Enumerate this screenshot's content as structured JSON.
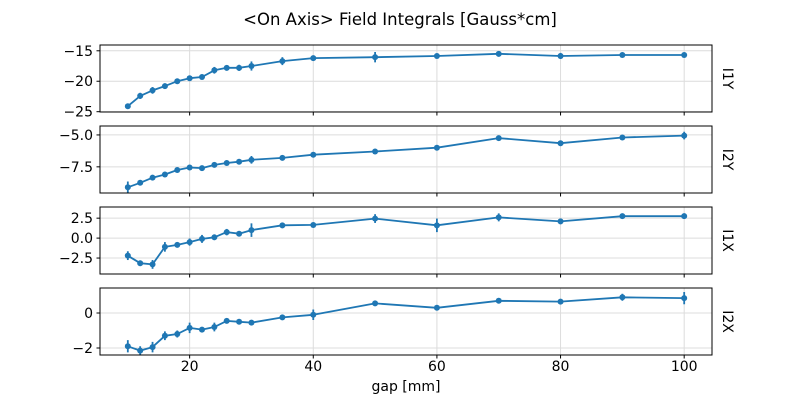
{
  "chart_data": {
    "type": "line",
    "title": "<On Axis> Field Integrals [Gauss*cm]",
    "xlabel": "gap [mm]",
    "grid": true,
    "legend": "none",
    "line_color": "#1f77b4",
    "grid_color": "#dcdcdc",
    "spine_color": "#000000",
    "text_color": "#000000",
    "x": [
      10,
      12,
      14,
      16,
      18,
      20,
      22,
      24,
      26,
      28,
      30,
      35,
      40,
      50,
      60,
      70,
      80,
      90,
      100
    ],
    "xlim": [
      5.5,
      104.5
    ],
    "xticks": [
      {
        "v": 20,
        "label": "20"
      },
      {
        "v": 40,
        "label": "40"
      },
      {
        "v": 60,
        "label": "60"
      },
      {
        "v": 80,
        "label": "80"
      },
      {
        "v": 100,
        "label": "100"
      }
    ],
    "subplots": [
      {
        "name": "I1Y",
        "ylim": [
          -25.05,
          -14.05
        ],
        "yticks": [
          {
            "v": -15,
            "label": "−15"
          },
          {
            "v": -20,
            "label": "−20"
          },
          {
            "v": -25,
            "label": "−25"
          }
        ],
        "values": [
          -24.1,
          -22.4,
          -21.5,
          -20.8,
          -20.0,
          -19.5,
          -19.3,
          -18.2,
          -17.8,
          -17.8,
          -17.5,
          -16.7,
          -16.2,
          -16.05,
          -15.85,
          -15.5,
          -15.85,
          -15.7,
          -15.7
        ],
        "errors": [
          0.35,
          0.5,
          0.55,
          0.45,
          0.4,
          0.35,
          0.4,
          0.55,
          0.45,
          0.5,
          0.75,
          0.65,
          0.25,
          0.85,
          0.15,
          0.45,
          0.5,
          0.2,
          0.2
        ]
      },
      {
        "name": "I2Y",
        "ylim": [
          -9.55,
          -4.3
        ],
        "yticks": [
          {
            "v": -5.0,
            "label": "−5.0"
          },
          {
            "v": -7.5,
            "label": "−7.5"
          }
        ],
        "values": [
          -9.1,
          -8.75,
          -8.35,
          -8.1,
          -7.75,
          -7.55,
          -7.6,
          -7.35,
          -7.2,
          -7.1,
          -6.95,
          -6.8,
          -6.55,
          -6.3,
          -6.0,
          -5.25,
          -5.65,
          -5.2,
          -5.05
        ],
        "errors": [
          0.45,
          0.2,
          0.15,
          0.15,
          0.2,
          0.15,
          0.2,
          0.12,
          0.1,
          0.12,
          0.3,
          0.1,
          0.1,
          0.08,
          0.1,
          0.12,
          0.1,
          0.1,
          0.3
        ]
      },
      {
        "name": "I1X",
        "ylim": [
          -4.5,
          3.9
        ],
        "yticks": [
          {
            "v": 2.5,
            "label": "2.5"
          },
          {
            "v": 0.0,
            "label": "0.0"
          },
          {
            "v": -2.5,
            "label": "−2.5"
          }
        ],
        "values": [
          -2.2,
          -3.15,
          -3.3,
          -1.1,
          -0.85,
          -0.5,
          -0.1,
          0.1,
          0.75,
          0.55,
          1.0,
          1.6,
          1.65,
          2.45,
          1.6,
          2.6,
          2.1,
          2.75,
          2.75
        ],
        "errors": [
          0.55,
          0.35,
          0.55,
          0.6,
          0.25,
          0.45,
          0.5,
          0.35,
          0.4,
          0.3,
          0.85,
          0.35,
          0.25,
          0.55,
          0.85,
          0.5,
          0.35,
          0.2,
          0.35
        ]
      },
      {
        "name": "I2X",
        "ylim": [
          -2.4,
          1.43
        ],
        "yticks": [
          {
            "v": 0,
            "label": "0"
          },
          {
            "v": -2,
            "label": "−2"
          }
        ],
        "values": [
          -1.9,
          -2.15,
          -1.95,
          -1.3,
          -1.2,
          -0.85,
          -0.95,
          -0.8,
          -0.45,
          -0.5,
          -0.55,
          -0.25,
          -0.1,
          0.55,
          0.3,
          0.7,
          0.65,
          0.9,
          0.85
        ],
        "errors": [
          0.35,
          0.25,
          0.3,
          0.25,
          0.2,
          0.3,
          0.15,
          0.25,
          0.1,
          0.15,
          0.12,
          0.1,
          0.3,
          0.08,
          0.1,
          0.15,
          0.1,
          0.2,
          0.35
        ]
      }
    ]
  }
}
